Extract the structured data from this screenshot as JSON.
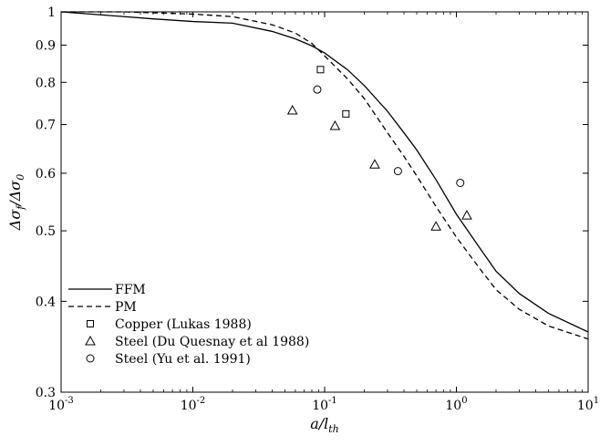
{
  "chart_data": {
    "type": "line",
    "xscale": "log",
    "yscale": "log",
    "xlim": [
      0.001,
      10
    ],
    "ylim": [
      0.3,
      1
    ],
    "xlabel": "a/l_th",
    "ylabel": "Δσ_f/Δσ_0",
    "x_ticks": [
      {
        "value": 0.001,
        "base": "10",
        "exp": "-3"
      },
      {
        "value": 0.01,
        "base": "10",
        "exp": "-2"
      },
      {
        "value": 0.1,
        "base": "10",
        "exp": "-1"
      },
      {
        "value": 1,
        "base": "10",
        "exp": "0"
      },
      {
        "value": 10,
        "base": "10",
        "exp": "1"
      }
    ],
    "y_ticks": [
      {
        "value": 0.3,
        "label": "0.3"
      },
      {
        "value": 0.4,
        "label": "0.4"
      },
      {
        "value": 0.5,
        "label": "0.5"
      },
      {
        "value": 0.6,
        "label": "0.6"
      },
      {
        "value": 0.7,
        "label": "0.7"
      },
      {
        "value": 0.8,
        "label": "0.8"
      },
      {
        "value": 0.9,
        "label": "0.9"
      },
      {
        "value": 1,
        "label": "1"
      }
    ],
    "legend_position": "bottom-left",
    "series": [
      {
        "name": "FFM",
        "kind": "line",
        "style": "solid",
        "points": [
          [
            0.001,
            1.0
          ],
          [
            0.0021,
            0.99
          ],
          [
            0.005,
            0.978
          ],
          [
            0.01,
            0.97
          ],
          [
            0.02,
            0.965
          ],
          [
            0.04,
            0.94
          ],
          [
            0.06,
            0.918
          ],
          [
            0.08,
            0.898
          ],
          [
            0.1,
            0.878
          ],
          [
            0.15,
            0.832
          ],
          [
            0.2,
            0.792
          ],
          [
            0.3,
            0.73
          ],
          [
            0.4,
            0.682
          ],
          [
            0.5,
            0.646
          ],
          [
            0.7,
            0.588
          ],
          [
            1.0,
            0.527
          ],
          [
            1.5,
            0.474
          ],
          [
            2.0,
            0.44
          ],
          [
            3.0,
            0.41
          ],
          [
            5.0,
            0.385
          ],
          [
            10.0,
            0.363
          ]
        ]
      },
      {
        "name": "PM",
        "kind": "line",
        "style": "dashed",
        "points": [
          [
            0.001,
            1.0
          ],
          [
            0.003,
            1.0
          ],
          [
            0.01,
            0.993
          ],
          [
            0.02,
            0.985
          ],
          [
            0.04,
            0.96
          ],
          [
            0.06,
            0.935
          ],
          [
            0.08,
            0.905
          ],
          [
            0.1,
            0.87
          ],
          [
            0.15,
            0.808
          ],
          [
            0.2,
            0.76
          ],
          [
            0.3,
            0.682
          ],
          [
            0.4,
            0.633
          ],
          [
            0.5,
            0.595
          ],
          [
            0.7,
            0.54
          ],
          [
            1.0,
            0.49
          ],
          [
            1.5,
            0.444
          ],
          [
            2.0,
            0.415
          ],
          [
            3.0,
            0.39
          ],
          [
            5.0,
            0.37
          ],
          [
            10.0,
            0.355
          ]
        ]
      },
      {
        "name": "Copper (Lukas 1988)",
        "kind": "scatter",
        "marker": "square",
        "points": [
          [
            0.093,
            0.833
          ],
          [
            0.145,
            0.724
          ]
        ]
      },
      {
        "name": "Steel (Du Quesnay et al 1988)",
        "kind": "scatter",
        "marker": "triangle",
        "points": [
          [
            0.057,
            0.732
          ],
          [
            0.12,
            0.697
          ],
          [
            0.24,
            0.617
          ],
          [
            0.7,
            0.507
          ],
          [
            1.2,
            0.525
          ]
        ]
      },
      {
        "name": "Steel (Yu et al. 1991)",
        "kind": "scatter",
        "marker": "circle",
        "points": [
          [
            0.088,
            0.782
          ],
          [
            0.36,
            0.604
          ],
          [
            1.07,
            0.582
          ]
        ]
      }
    ]
  }
}
